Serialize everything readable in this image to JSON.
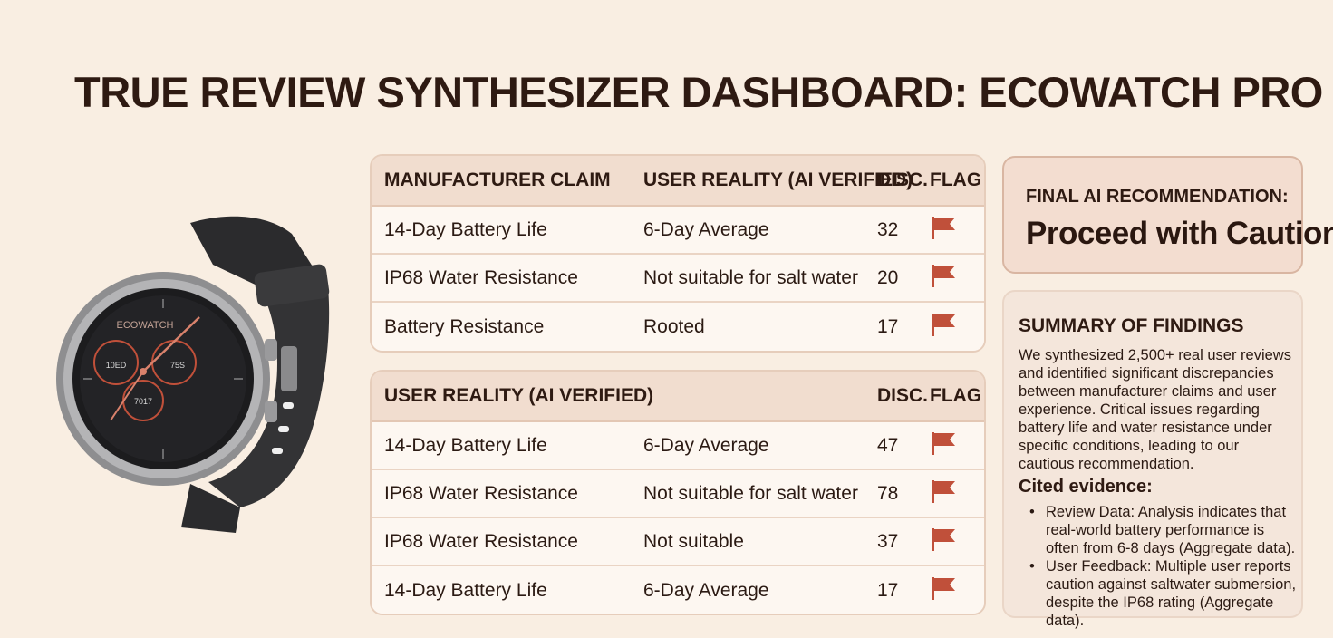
{
  "title": "TRUE REVIEW SYNTHESIZER DASHBOARD: ECOWATCH PRO X",
  "watch": {
    "brand": "ECOWATCH",
    "left_dial": "10ED",
    "right_dial": "75S",
    "bottom_dial": "7017"
  },
  "table1": {
    "headers": {
      "claim": "MANUFACTURER CLAIM",
      "reality": "USER REALITY (AI VERIFIED)",
      "disc": "DISC.",
      "flag": "FLAG"
    },
    "rows": [
      {
        "claim": "14-Day Battery Life",
        "reality": "6-Day Average",
        "disc": "32",
        "flag": "flag-icon"
      },
      {
        "claim": "IP68 Water Resistance",
        "reality": "Not suitable for salt water",
        "disc": "20",
        "flag": "flag-icon"
      },
      {
        "claim": "Battery Resistance",
        "reality": "Rooted",
        "disc": "17",
        "flag": "flag-icon"
      }
    ]
  },
  "table2": {
    "headers": {
      "claim": "USER REALITY (AI VERIFIED)",
      "reality": "",
      "disc": "DISC.",
      "flag": "FLAG"
    },
    "rows": [
      {
        "claim": "14-Day Battery Life",
        "reality": "6-Day Average",
        "disc": "47",
        "flag": "flag-icon"
      },
      {
        "claim": "IP68 Water Resistance",
        "reality": "Not suitable for salt water",
        "disc": "78",
        "flag": "flag-icon"
      },
      {
        "claim": "IP68 Water Resistance",
        "reality": "Not suitable",
        "disc": "37",
        "flag": "flag-icon"
      },
      {
        "claim": "14-Day Battery Life",
        "reality": "6-Day Average",
        "disc": "17",
        "flag": "flag-icon"
      }
    ]
  },
  "recommendation": {
    "label": "FINAL AI RECOMMENDATION:",
    "value": "Proceed with Caution"
  },
  "summary": {
    "title": "SUMMARY OF FINDINGS",
    "body": "We synthesized 2,500+ real user reviews and identified significant discrepancies between manufacturer claims and user experience. Critical issues regarding battery life and water resistance under specific conditions, leading to our cautious recommendation.",
    "cited_title": "Cited evidence:",
    "cited": [
      "Review Data: Analysis indicates that real-world battery performance is often from 6-8 days (Aggregate data).",
      "User Feedback: Multiple user reports caution against saltwater submersion, despite the IP68 rating (Aggregate data)."
    ]
  },
  "colors": {
    "background": "#f9eee2",
    "header_bg": "#f1ddcf",
    "flag": "#c0503a",
    "text": "#2b1a13"
  }
}
